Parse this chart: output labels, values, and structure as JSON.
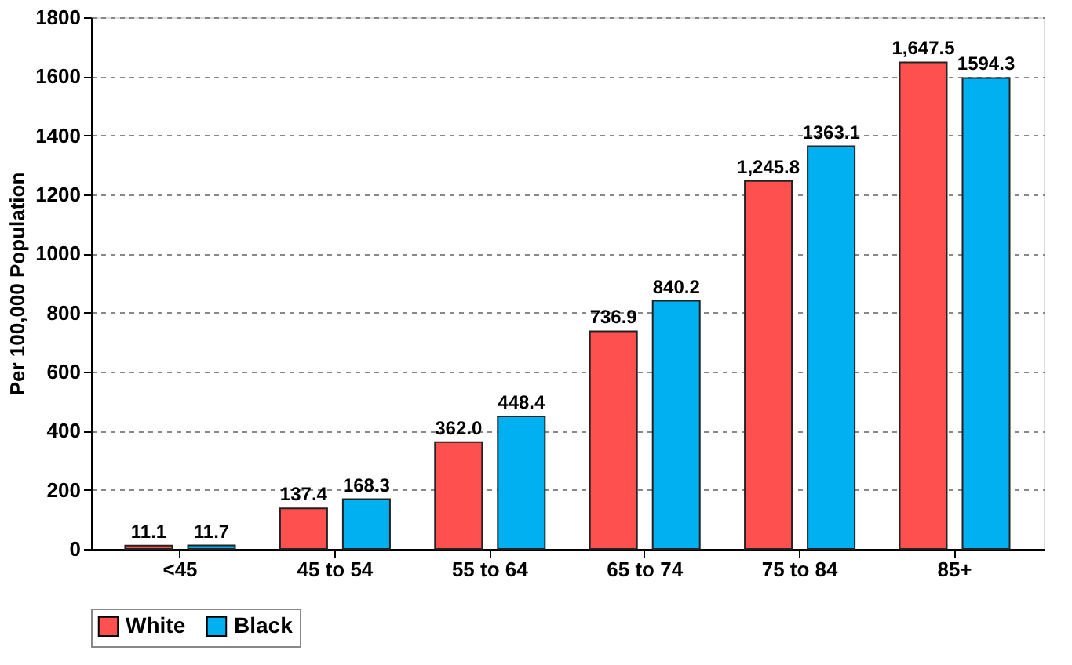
{
  "chart_data": {
    "type": "bar",
    "ylabel": "Per 100,000 Population",
    "categories": [
      "<45",
      "45 to 54",
      "55 to 64",
      "65 to 74",
      "75 to 84",
      "85+"
    ],
    "series": [
      {
        "name": "White",
        "color": "#ff5050",
        "values": [
          11.1,
          137.4,
          362.0,
          736.9,
          1245.8,
          1647.5
        ],
        "value_labels": [
          "11.1",
          "137.4",
          "362.0",
          "736.9",
          "1,245.8",
          "1,647.5"
        ]
      },
      {
        "name": "Black",
        "color": "#00b0f0",
        "values": [
          11.7,
          168.3,
          448.4,
          840.2,
          1363.1,
          1594.3
        ],
        "value_labels": [
          "11.7",
          "168.3",
          "448.4",
          "840.2",
          "1363.1",
          "1594.3"
        ]
      }
    ],
    "ylim": [
      0,
      1800
    ],
    "yticks": [
      0,
      200,
      400,
      600,
      800,
      1000,
      1200,
      1400,
      1600,
      1800
    ],
    "grid": "y",
    "legend": "bottom"
  }
}
